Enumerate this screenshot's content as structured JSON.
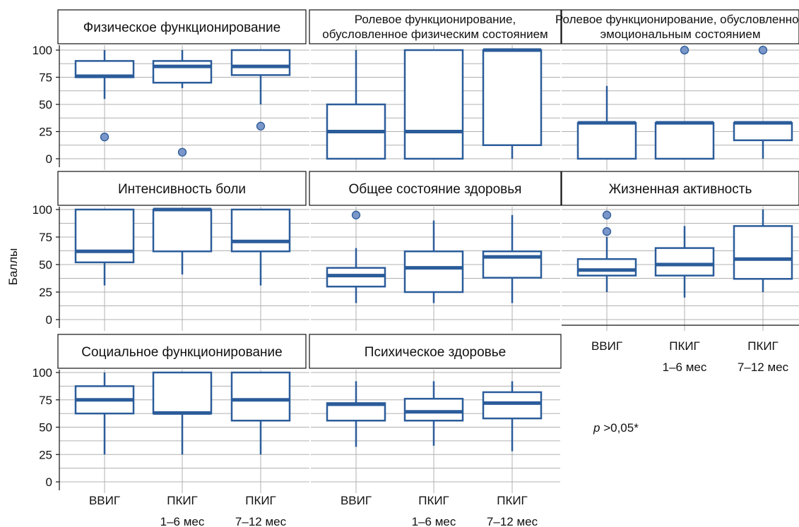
{
  "chart_data": {
    "type": "boxplot",
    "ylabel": "Баллы",
    "ylim": [
      0,
      100
    ],
    "yticks": [
      0,
      25,
      50,
      75,
      100
    ],
    "categories": [
      [
        "ВВИГ"
      ],
      [
        "ПКИГ",
        "1–6 мес"
      ],
      [
        "ПКИГ",
        "7–12 мес"
      ]
    ],
    "colors": {
      "box": "#2b5c9a",
      "outlier_fill": "#7b96c8",
      "grid": "#b0b0b0"
    },
    "annotation": {
      "italic": "p",
      "rest": " >0,05*"
    },
    "panels": [
      {
        "title": [
          "Физическое функционирование"
        ],
        "boxes": [
          {
            "q1": 75,
            "median": 76,
            "q3": 90,
            "low": 55,
            "high": 100,
            "outliers": [
              20
            ]
          },
          {
            "q1": 70,
            "median": 85,
            "q3": 90,
            "low": 65,
            "high": 100,
            "outliers": [
              6
            ]
          },
          {
            "q1": 77,
            "median": 85,
            "q3": 100,
            "low": 50,
            "high": 100,
            "outliers": [
              30
            ]
          }
        ]
      },
      {
        "title": [
          "Ролевое функционирование,",
          "обусловленное физическим состоянием"
        ],
        "boxes": [
          {
            "q1": 0,
            "median": 25,
            "q3": 50,
            "low": 0,
            "high": 100,
            "outliers": []
          },
          {
            "q1": 0,
            "median": 25,
            "q3": 100,
            "low": 0,
            "high": 100,
            "outliers": []
          },
          {
            "q1": 12.5,
            "median": 100,
            "q3": 100,
            "low": 0,
            "high": 100,
            "outliers": []
          }
        ]
      },
      {
        "title": [
          "Ролевое функционирование, обусловленное",
          "эмоциональным состоянием"
        ],
        "boxes": [
          {
            "q1": 0,
            "median": 33,
            "q3": 33,
            "low": 0,
            "high": 67,
            "outliers": []
          },
          {
            "q1": 0,
            "median": 33,
            "q3": 33,
            "low": 0,
            "high": 33,
            "outliers": [
              100
            ]
          },
          {
            "q1": 17,
            "median": 33,
            "q3": 33,
            "low": 0,
            "high": 33,
            "outliers": [
              100
            ]
          }
        ]
      },
      {
        "title": [
          "Интенсивность боли"
        ],
        "boxes": [
          {
            "q1": 52,
            "median": 62,
            "q3": 100,
            "low": 31,
            "high": 100,
            "outliers": []
          },
          {
            "q1": 62,
            "median": 100,
            "q3": 100,
            "low": 41,
            "high": 100,
            "outliers": []
          },
          {
            "q1": 62,
            "median": 71,
            "q3": 100,
            "low": 31,
            "high": 100,
            "outliers": []
          }
        ]
      },
      {
        "title": [
          "Общее состояние здоровья"
        ],
        "boxes": [
          {
            "q1": 30,
            "median": 40,
            "q3": 47,
            "low": 15,
            "high": 65,
            "outliers": [
              95
            ]
          },
          {
            "q1": 25,
            "median": 47,
            "q3": 62,
            "low": 15,
            "high": 90,
            "outliers": []
          },
          {
            "q1": 38,
            "median": 57,
            "q3": 62,
            "low": 15,
            "high": 95,
            "outliers": []
          }
        ]
      },
      {
        "title": [
          "Жизненная активность"
        ],
        "boxes": [
          {
            "q1": 40,
            "median": 45,
            "q3": 55,
            "low": 25,
            "high": 75,
            "outliers": [
              95,
              80
            ]
          },
          {
            "q1": 40,
            "median": 50,
            "q3": 65,
            "low": 20,
            "high": 85,
            "outliers": []
          },
          {
            "q1": 37,
            "median": 55,
            "q3": 85,
            "low": 25,
            "high": 100,
            "outliers": []
          }
        ]
      },
      {
        "title": [
          "Социальное функционирование"
        ],
        "boxes": [
          {
            "q1": 62.5,
            "median": 75,
            "q3": 87.5,
            "low": 25,
            "high": 100,
            "outliers": []
          },
          {
            "q1": 62.5,
            "median": 63,
            "q3": 100,
            "low": 25,
            "high": 100,
            "outliers": []
          },
          {
            "q1": 56,
            "median": 75,
            "q3": 100,
            "low": 25,
            "high": 100,
            "outliers": []
          }
        ]
      },
      {
        "title": [
          "Психическое здоровье"
        ],
        "boxes": [
          {
            "q1": 56,
            "median": 71,
            "q3": 72,
            "low": 32,
            "high": 92,
            "outliers": []
          },
          {
            "q1": 56,
            "median": 64,
            "q3": 76,
            "low": 33,
            "high": 92,
            "outliers": []
          },
          {
            "q1": 58,
            "median": 72,
            "q3": 82,
            "low": 28,
            "high": 92,
            "outliers": []
          }
        ]
      }
    ]
  }
}
